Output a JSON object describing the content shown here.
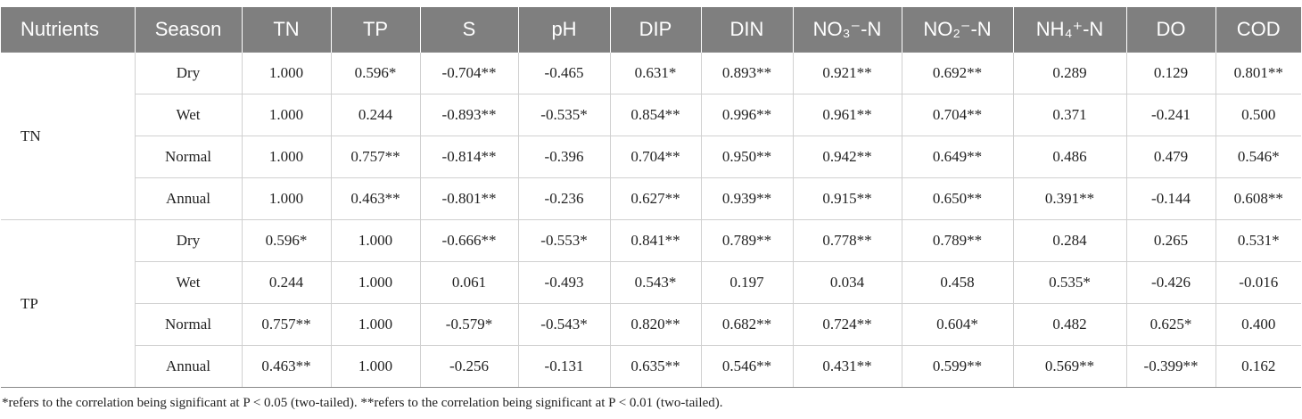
{
  "table": {
    "header": [
      "Nutrients",
      "Season",
      "TN",
      "TP",
      "S",
      "pH",
      "DIP",
      "DIN",
      "NO₃⁻-N",
      "NO₂⁻-N",
      "NH₄⁺-N",
      "DO",
      "COD"
    ],
    "groups": [
      {
        "label": "TN",
        "rows": [
          [
            "Dry",
            "1.000",
            "0.596*",
            "-0.704**",
            "-0.465",
            "0.631*",
            "0.893**",
            "0.921**",
            "0.692**",
            "0.289",
            "0.129",
            "0.801**"
          ],
          [
            "Wet",
            "1.000",
            "0.244",
            "-0.893**",
            "-0.535*",
            "0.854**",
            "0.996**",
            "0.961**",
            "0.704**",
            "0.371",
            "-0.241",
            "0.500"
          ],
          [
            "Normal",
            "1.000",
            "0.757**",
            "-0.814**",
            "-0.396",
            "0.704**",
            "0.950**",
            "0.942**",
            "0.649**",
            "0.486",
            "0.479",
            "0.546*"
          ],
          [
            "Annual",
            "1.000",
            "0.463**",
            "-0.801**",
            "-0.236",
            "0.627**",
            "0.939**",
            "0.915**",
            "0.650**",
            "0.391**",
            "-0.144",
            "0.608**"
          ]
        ]
      },
      {
        "label": "TP",
        "rows": [
          [
            "Dry",
            "0.596*",
            "1.000",
            "-0.666**",
            "-0.553*",
            "0.841**",
            "0.789**",
            "0.778**",
            "0.789**",
            "0.284",
            "0.265",
            "0.531*"
          ],
          [
            "Wet",
            "0.244",
            "1.000",
            "0.061",
            "-0.493",
            "0.543*",
            "0.197",
            "0.034",
            "0.458",
            "0.535*",
            "-0.426",
            "-0.016"
          ],
          [
            "Normal",
            "0.757**",
            "1.000",
            "-0.579*",
            "-0.543*",
            "0.820**",
            "0.682**",
            "0.724**",
            "0.604*",
            "0.482",
            "0.625*",
            "0.400"
          ],
          [
            "Annual",
            "0.463**",
            "1.000",
            "-0.256",
            "-0.131",
            "0.635**",
            "0.546**",
            "0.431**",
            "0.599**",
            "0.569**",
            "-0.399**",
            "0.162"
          ]
        ]
      }
    ],
    "footnote": "*refers to the correlation being significant at P < 0.05 (two-tailed). **refers to the correlation being significant at P < 0.01 (two-tailed)."
  }
}
